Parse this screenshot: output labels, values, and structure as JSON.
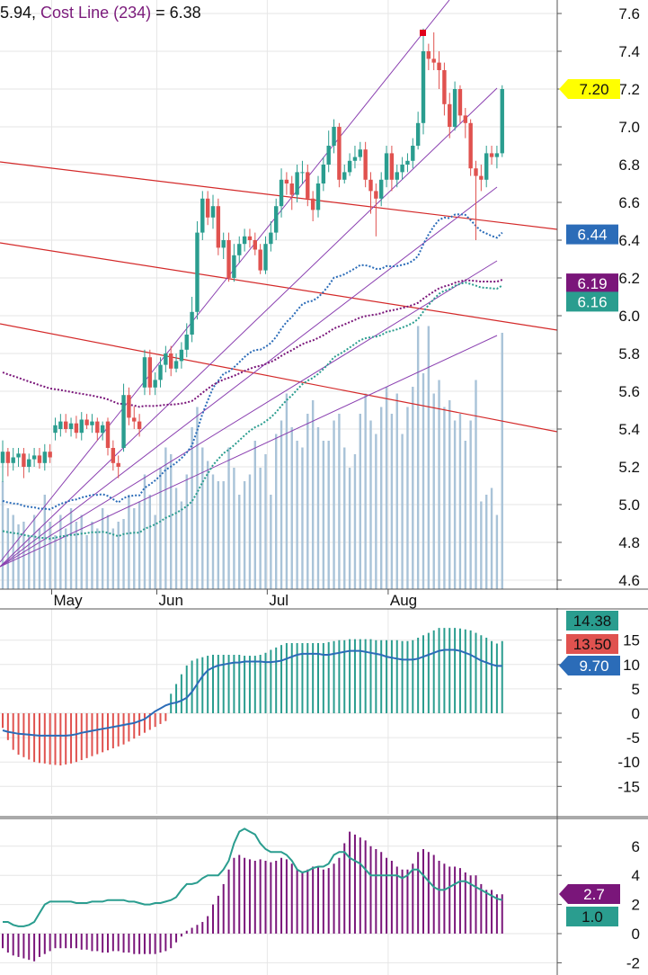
{
  "legend": {
    "prefix": "5.94, ",
    "name": "Cost Line (234)",
    "suffix": " = 6.38",
    "name_color": "#7b1b7b"
  },
  "colors": {
    "up": "#2a9d8f",
    "down": "#e0524f",
    "volume": "#a9c3d8",
    "purple": "#7a167a",
    "teal": "#2a9d8f",
    "blue": "#2b6cb8",
    "red_line": "#d42a2a",
    "fan_line": "#8a3fb0",
    "grid": "#e6e6e6",
    "yellow": "#ffff00",
    "peak_marker": "#e0001a"
  },
  "chart_data": [
    {
      "type": "candlestick",
      "name": "price",
      "x_labels": [
        "May",
        "Jun",
        "Jul",
        "Aug"
      ],
      "y_ticks": [
        7.6,
        7.4,
        7.2,
        7.0,
        6.8,
        6.6,
        6.4,
        6.2,
        6.0,
        5.8,
        5.6,
        5.4,
        5.2,
        5.0,
        4.8,
        4.6
      ],
      "ylim": [
        4.55,
        7.62
      ],
      "last_price_tag": "7.20",
      "indicator_tags": [
        {
          "label": "6.44",
          "value": 6.44,
          "color": "blue"
        },
        {
          "label": "6.19",
          "value": 6.19,
          "color": "purple"
        },
        {
          "label": "6.16",
          "value": 6.16,
          "color": "teal"
        }
      ],
      "close": [
        5.28,
        5.22,
        5.25,
        5.27,
        5.2,
        5.24,
        5.26,
        5.22,
        5.28,
        5.25,
        5.42,
        5.44,
        5.4,
        5.43,
        5.38,
        5.45,
        5.42,
        5.44,
        5.38,
        5.42,
        5.3,
        5.22,
        5.2,
        5.58,
        5.46,
        5.44,
        5.4,
        5.78,
        5.62,
        5.66,
        5.74,
        5.8,
        5.72,
        5.76,
        5.82,
        5.9,
        6.02,
        6.44,
        6.62,
        6.52,
        6.58,
        6.36,
        6.4,
        6.2,
        6.32,
        6.38,
        6.42,
        6.4,
        6.35,
        6.24,
        6.38,
        6.44,
        6.58,
        6.72,
        6.7,
        6.64,
        6.76,
        6.76,
        6.62,
        6.56,
        6.7,
        6.8,
        6.9,
        7.0,
        6.72,
        6.76,
        6.82,
        6.84,
        6.88,
        6.72,
        6.66,
        6.62,
        6.72,
        6.86,
        6.72,
        6.76,
        6.8,
        6.82,
        6.9,
        7.02,
        7.4,
        7.36,
        7.34,
        7.3,
        7.12,
        7.0,
        7.2,
        7.06,
        7.02,
        6.78,
        6.74,
        6.72,
        6.86,
        6.84,
        6.86,
        7.2
      ],
      "open": [
        5.22,
        5.28,
        5.22,
        5.25,
        5.27,
        5.2,
        5.24,
        5.26,
        5.22,
        5.28,
        5.38,
        5.4,
        5.44,
        5.4,
        5.43,
        5.38,
        5.45,
        5.42,
        5.44,
        5.38,
        5.44,
        5.3,
        5.22,
        5.3,
        5.58,
        5.46,
        5.44,
        5.62,
        5.78,
        5.62,
        5.66,
        5.74,
        5.8,
        5.72,
        5.76,
        5.82,
        5.9,
        6.02,
        6.44,
        6.62,
        6.52,
        6.58,
        6.36,
        6.4,
        6.2,
        6.32,
        6.38,
        6.42,
        6.4,
        6.35,
        6.24,
        6.38,
        6.44,
        6.58,
        6.72,
        6.7,
        6.64,
        6.76,
        6.76,
        6.62,
        6.56,
        6.7,
        6.8,
        6.9,
        7.0,
        6.72,
        6.76,
        6.82,
        6.84,
        6.88,
        6.72,
        6.66,
        6.62,
        6.72,
        6.86,
        6.72,
        6.76,
        6.8,
        6.82,
        6.9,
        7.02,
        7.4,
        7.36,
        7.34,
        7.3,
        7.12,
        7.0,
        7.2,
        7.06,
        7.02,
        6.78,
        6.74,
        6.72,
        6.86,
        6.84,
        6.86
      ],
      "high": [
        5.34,
        5.3,
        5.3,
        5.3,
        5.3,
        5.27,
        5.3,
        5.3,
        5.32,
        5.32,
        5.46,
        5.48,
        5.48,
        5.46,
        5.47,
        5.49,
        5.48,
        5.48,
        5.46,
        5.44,
        5.46,
        5.34,
        5.26,
        5.64,
        5.62,
        5.52,
        5.48,
        5.82,
        5.82,
        5.7,
        5.78,
        5.84,
        5.84,
        5.8,
        5.86,
        5.96,
        6.1,
        6.5,
        6.66,
        6.66,
        6.64,
        6.62,
        6.44,
        6.44,
        6.38,
        6.42,
        6.46,
        6.46,
        6.44,
        6.38,
        6.42,
        6.5,
        6.62,
        6.78,
        6.76,
        6.74,
        6.8,
        6.82,
        6.8,
        6.66,
        6.74,
        6.84,
        6.98,
        7.04,
        7.02,
        6.8,
        6.86,
        6.9,
        6.92,
        6.92,
        6.76,
        6.7,
        6.76,
        6.9,
        6.9,
        6.8,
        6.84,
        6.86,
        6.94,
        7.08,
        7.52,
        7.44,
        7.5,
        7.4,
        7.34,
        7.18,
        7.24,
        7.22,
        7.1,
        7.04,
        6.82,
        6.8,
        6.9,
        6.9,
        6.9,
        7.22
      ],
      "low": [
        5.12,
        5.15,
        5.18,
        5.2,
        5.14,
        5.17,
        5.2,
        5.19,
        5.18,
        5.22,
        5.34,
        5.36,
        5.38,
        5.36,
        5.35,
        5.34,
        5.4,
        5.38,
        5.34,
        5.34,
        5.26,
        5.18,
        5.14,
        5.28,
        5.42,
        5.4,
        5.36,
        5.58,
        5.58,
        5.58,
        5.62,
        5.7,
        5.68,
        5.7,
        5.72,
        5.78,
        5.86,
        5.98,
        6.4,
        6.48,
        6.46,
        6.32,
        6.3,
        6.18,
        6.18,
        6.28,
        6.34,
        6.36,
        6.32,
        6.22,
        6.22,
        6.34,
        6.4,
        6.52,
        6.64,
        6.56,
        6.6,
        6.7,
        6.58,
        6.5,
        6.52,
        6.66,
        6.76,
        6.86,
        6.68,
        6.7,
        6.74,
        6.78,
        6.82,
        6.68,
        6.54,
        6.42,
        6.58,
        6.68,
        6.66,
        6.68,
        6.72,
        6.76,
        6.78,
        6.88,
        6.96,
        7.3,
        7.3,
        7.2,
        7.06,
        6.94,
        6.98,
        7.02,
        6.94,
        6.74,
        6.4,
        6.66,
        6.68,
        6.8,
        6.78,
        6.84
      ],
      "volume": [
        0.8,
        0.6,
        0.55,
        0.48,
        0.5,
        0.4,
        0.55,
        0.45,
        0.7,
        0.5,
        0.4,
        0.55,
        0.45,
        0.6,
        0.5,
        0.55,
        0.4,
        0.5,
        0.45,
        0.6,
        0.55,
        0.45,
        0.5,
        0.52,
        0.7,
        0.6,
        0.65,
        0.85,
        0.7,
        0.55,
        0.9,
        1.05,
        1.0,
        0.75,
        0.65,
        0.85,
        1.2,
        1.35,
        1.05,
        0.95,
        0.85,
        0.8,
        0.8,
        1.05,
        0.9,
        0.7,
        0.8,
        0.85,
        1.1,
        0.9,
        1.0,
        0.7,
        1.15,
        1.25,
        1.45,
        1.2,
        1.1,
        1.05,
        1.3,
        1.4,
        1.2,
        1.1,
        1.1,
        1.25,
        1.3,
        1.05,
        0.9,
        1.0,
        1.3,
        1.45,
        1.25,
        1.15,
        1.35,
        1.5,
        1.3,
        1.45,
        1.15,
        1.35,
        1.5,
        1.95,
        1.6,
        1.95,
        1.45,
        1.55,
        1.35,
        1.4,
        1.25,
        1.3,
        1.1,
        1.25,
        1.55,
        0.65,
        0.7,
        0.75,
        0.55,
        1.9
      ]
    },
    {
      "type": "bar+line",
      "name": "panel-2",
      "y_ticks": [
        15,
        10,
        5,
        0,
        -5,
        -10,
        -15
      ],
      "ylim": [
        -19.5,
        20.5
      ],
      "tags": [
        {
          "label": "14.38",
          "color": "teal"
        },
        {
          "label": "13.50",
          "color": "red"
        },
        {
          "label": "9.70",
          "value": 9.7,
          "color": "blue"
        }
      ],
      "bars": [
        -3.0,
        -5.5,
        -7.5,
        -8.5,
        -9.0,
        -9.5,
        -10.0,
        -10.2,
        -10.3,
        -10.5,
        -10.6,
        -10.7,
        -10.5,
        -10.3,
        -10.0,
        -9.6,
        -9.2,
        -8.8,
        -8.4,
        -8.0,
        -7.6,
        -7.2,
        -6.8,
        -6.4,
        -5.8,
        -5.2,
        -4.6,
        -4.0,
        -3.4,
        -2.8,
        -2.2,
        -1.6,
        4.0,
        6.0,
        8.0,
        9.8,
        10.8,
        11.2,
        11.5,
        11.8,
        12.0,
        12.0,
        12.0,
        12.0,
        12.0,
        12.0,
        11.8,
        11.8,
        11.8,
        12.0,
        12.4,
        13.0,
        13.5,
        14.0,
        14.4,
        14.4,
        14.4,
        14.4,
        14.4,
        14.4,
        14.4,
        14.4,
        14.6,
        14.8,
        15.0,
        15.0,
        15.2,
        15.2,
        15.2,
        15.2,
        15.2,
        15.0,
        15.0,
        15.0,
        15.0,
        15.0,
        14.8,
        14.8,
        15.0,
        15.5,
        16.0,
        16.5,
        17.0,
        17.5,
        17.5,
        17.5,
        17.5,
        17.4,
        17.2,
        17.0,
        16.5,
        16.0,
        15.5,
        14.8,
        14.3,
        14.8
      ],
      "line": [
        -3.5,
        -3.8,
        -4.0,
        -4.2,
        -4.3,
        -4.4,
        -4.5,
        -4.6,
        -4.6,
        -4.6,
        -4.6,
        -4.6,
        -4.6,
        -4.5,
        -4.3,
        -4.0,
        -3.8,
        -3.6,
        -3.4,
        -3.2,
        -3.0,
        -2.8,
        -2.6,
        -2.4,
        -2.2,
        -2.0,
        -1.6,
        -1.2,
        -0.4,
        0.4,
        1.0,
        1.6,
        2.0,
        2.2,
        2.6,
        3.2,
        4.4,
        6.0,
        7.6,
        8.8,
        9.4,
        9.8,
        10.0,
        10.2,
        10.4,
        10.4,
        10.6,
        10.6,
        10.6,
        10.6,
        10.5,
        10.5,
        10.6,
        10.8,
        11.2,
        11.6,
        12.0,
        12.2,
        12.2,
        12.2,
        12.2,
        12.0,
        12.0,
        12.2,
        12.4,
        12.6,
        12.8,
        12.8,
        12.8,
        12.6,
        12.4,
        12.2,
        12.0,
        11.6,
        11.4,
        11.2,
        11.0,
        11.0,
        11.0,
        11.2,
        11.6,
        12.0,
        12.4,
        12.8,
        13.0,
        13.0,
        13.0,
        12.8,
        12.4,
        12.0,
        11.4,
        10.8,
        10.4,
        10.0,
        9.7,
        9.7
      ]
    },
    {
      "type": "bar+line",
      "name": "panel-3",
      "y_ticks": [
        6,
        4,
        2,
        0,
        -2
      ],
      "ylim": [
        -2.6,
        7.8
      ],
      "tags": [
        {
          "label": "2.7",
          "value": 2.7,
          "color": "purple"
        },
        {
          "label": "1.0",
          "value": 1.0,
          "color": "teal"
        }
      ],
      "bars": [
        -1.0,
        -1.3,
        -1.5,
        -1.6,
        -1.7,
        -1.8,
        -1.9,
        -1.6,
        -1.4,
        -1.2,
        -1.0,
        -1.0,
        -1.0,
        -1.0,
        -1.0,
        -1.1,
        -1.1,
        -1.2,
        -1.2,
        -1.3,
        -1.3,
        -1.2,
        -1.2,
        -1.3,
        -1.3,
        -1.4,
        -1.4,
        -1.4,
        -1.4,
        -1.4,
        -1.3,
        -1.2,
        -1.0,
        -0.6,
        -0.2,
        0.2,
        0.4,
        0.6,
        0.8,
        1.2,
        2.0,
        2.6,
        3.4,
        4.4,
        5.2,
        5.4,
        5.2,
        5.1,
        5.0,
        5.1,
        5.0,
        4.9,
        5.0,
        5.2,
        5.1,
        4.8,
        4.4,
        4.2,
        4.4,
        4.6,
        4.6,
        4.4,
        4.5,
        4.8,
        5.2,
        6.2,
        7.0,
        6.8,
        6.6,
        6.4,
        6.0,
        5.8,
        5.6,
        5.2,
        5.0,
        4.6,
        4.4,
        4.4,
        4.8,
        5.6,
        5.8,
        5.6,
        5.4,
        5.0,
        4.8,
        4.6,
        4.6,
        4.5,
        4.2,
        4.0,
        4.0,
        3.4,
        3.0,
        3.0,
        2.7,
        2.7
      ],
      "line": [
        0.8,
        0.8,
        0.6,
        0.5,
        0.5,
        0.6,
        0.8,
        1.4,
        2.0,
        2.2,
        2.2,
        2.2,
        2.2,
        2.2,
        2.1,
        2.1,
        2.1,
        2.2,
        2.2,
        2.2,
        2.3,
        2.3,
        2.3,
        2.3,
        2.2,
        2.2,
        2.1,
        2.0,
        2.0,
        2.1,
        2.1,
        2.2,
        2.3,
        2.5,
        3.0,
        3.4,
        3.4,
        3.5,
        3.8,
        4.0,
        4.0,
        4.0,
        4.4,
        5.0,
        6.2,
        7.0,
        7.2,
        7.0,
        6.8,
        6.2,
        5.8,
        5.6,
        5.6,
        5.6,
        5.4,
        5.0,
        4.4,
        4.2,
        4.3,
        4.5,
        4.6,
        4.6,
        4.8,
        5.4,
        5.6,
        5.6,
        5.2,
        5.0,
        4.8,
        4.4,
        4.0,
        4.0,
        4.0,
        4.0,
        4.0,
        4.0,
        3.8,
        4.0,
        4.4,
        4.4,
        4.0,
        3.6,
        3.2,
        3.0,
        3.0,
        3.2,
        3.4,
        3.6,
        3.6,
        3.4,
        3.2,
        3.0,
        2.8,
        2.6,
        2.4,
        2.3
      ]
    }
  ]
}
